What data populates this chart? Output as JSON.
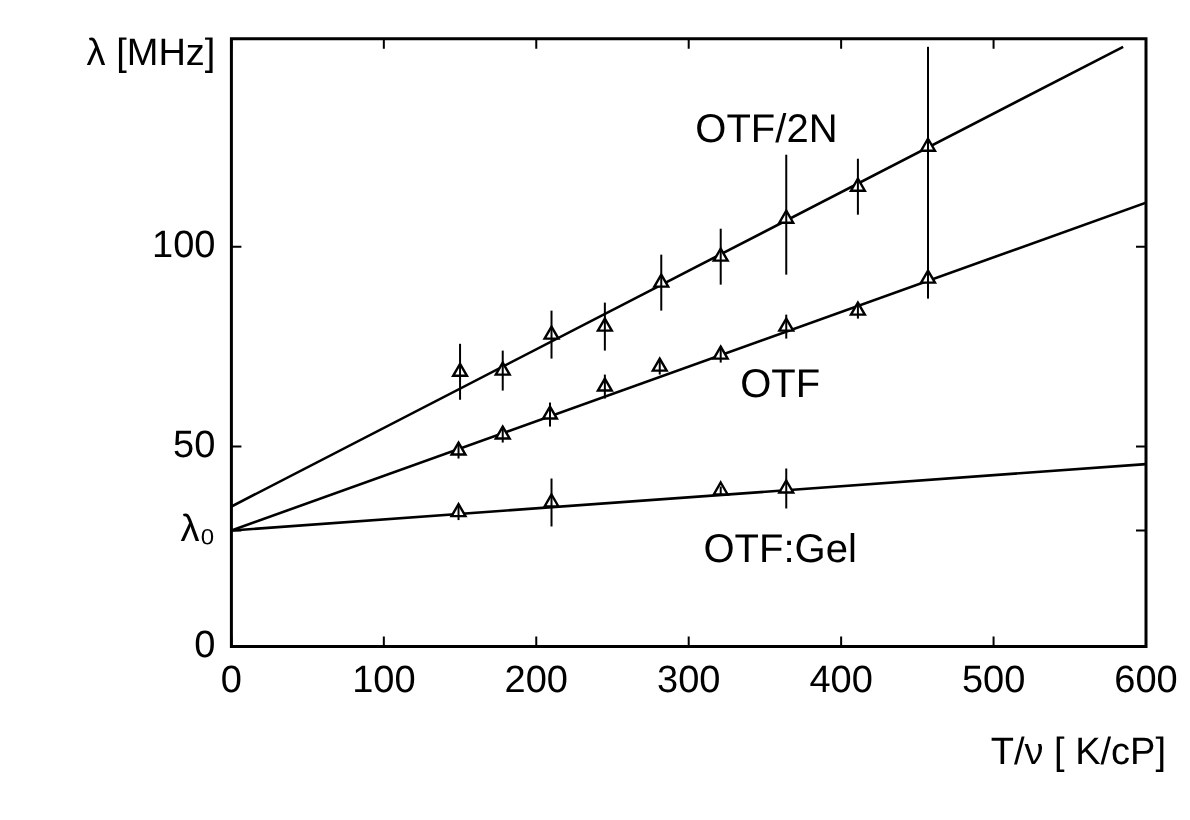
{
  "chart_data": {
    "type": "scatter",
    "xlabel": "T/ν [ K/cP]",
    "ylabel": "λ [MHz]",
    "xlim": [
      0,
      600
    ],
    "xticks": [
      0,
      100,
      200,
      300,
      400,
      500,
      600
    ],
    "ylim": [
      0,
      152
    ],
    "yticks": [
      0,
      {
        "value": 29,
        "label": "λ₀"
      },
      50,
      100
    ],
    "grid": false,
    "legend": false,
    "marker": "triangle",
    "series": [
      {
        "color": "#000000",
        "x": [
          150,
          178,
          210,
          245,
          282,
          321,
          364,
          411,
          457
        ],
        "values": [
          68.7,
          69,
          78,
          80,
          91,
          97.5,
          107,
          115,
          125
        ],
        "errors": [
          7,
          5,
          6,
          6,
          7,
          7,
          [
            93,
            123
          ],
          7,
          [
            87,
            150
          ]
        ]
      },
      {
        "color": "#000000",
        "x": [
          149,
          178,
          209,
          245,
          281,
          321,
          364,
          411,
          457
        ],
        "values": [
          49,
          53,
          58,
          65,
          70,
          73,
          80,
          84,
          92
        ],
        "errors": [
          2,
          2,
          3,
          3,
          2,
          2,
          3,
          2,
          3
        ]
      },
      {
        "color": "#000000",
        "x": [
          149,
          210,
          321,
          364
        ],
        "values": [
          33.6,
          36,
          39,
          39.5
        ],
        "errors": [
          2,
          6,
          1,
          5
        ]
      },
      {
        "type": "line",
        "name": "OTF/2N",
        "marker": "none",
        "color": "#000000",
        "x": [
          0,
          585
        ],
        "values": [
          35,
          150
        ]
      },
      {
        "type": "line",
        "name": "OTF",
        "marker": "none",
        "color": "#000000",
        "x": [
          0,
          600
        ],
        "values": [
          29,
          111
        ]
      },
      {
        "type": "line",
        "name": "OTF:Gel",
        "marker": "none",
        "color": "#000000",
        "x": [
          0,
          600
        ],
        "values": [
          29,
          45.6
        ]
      }
    ]
  }
}
